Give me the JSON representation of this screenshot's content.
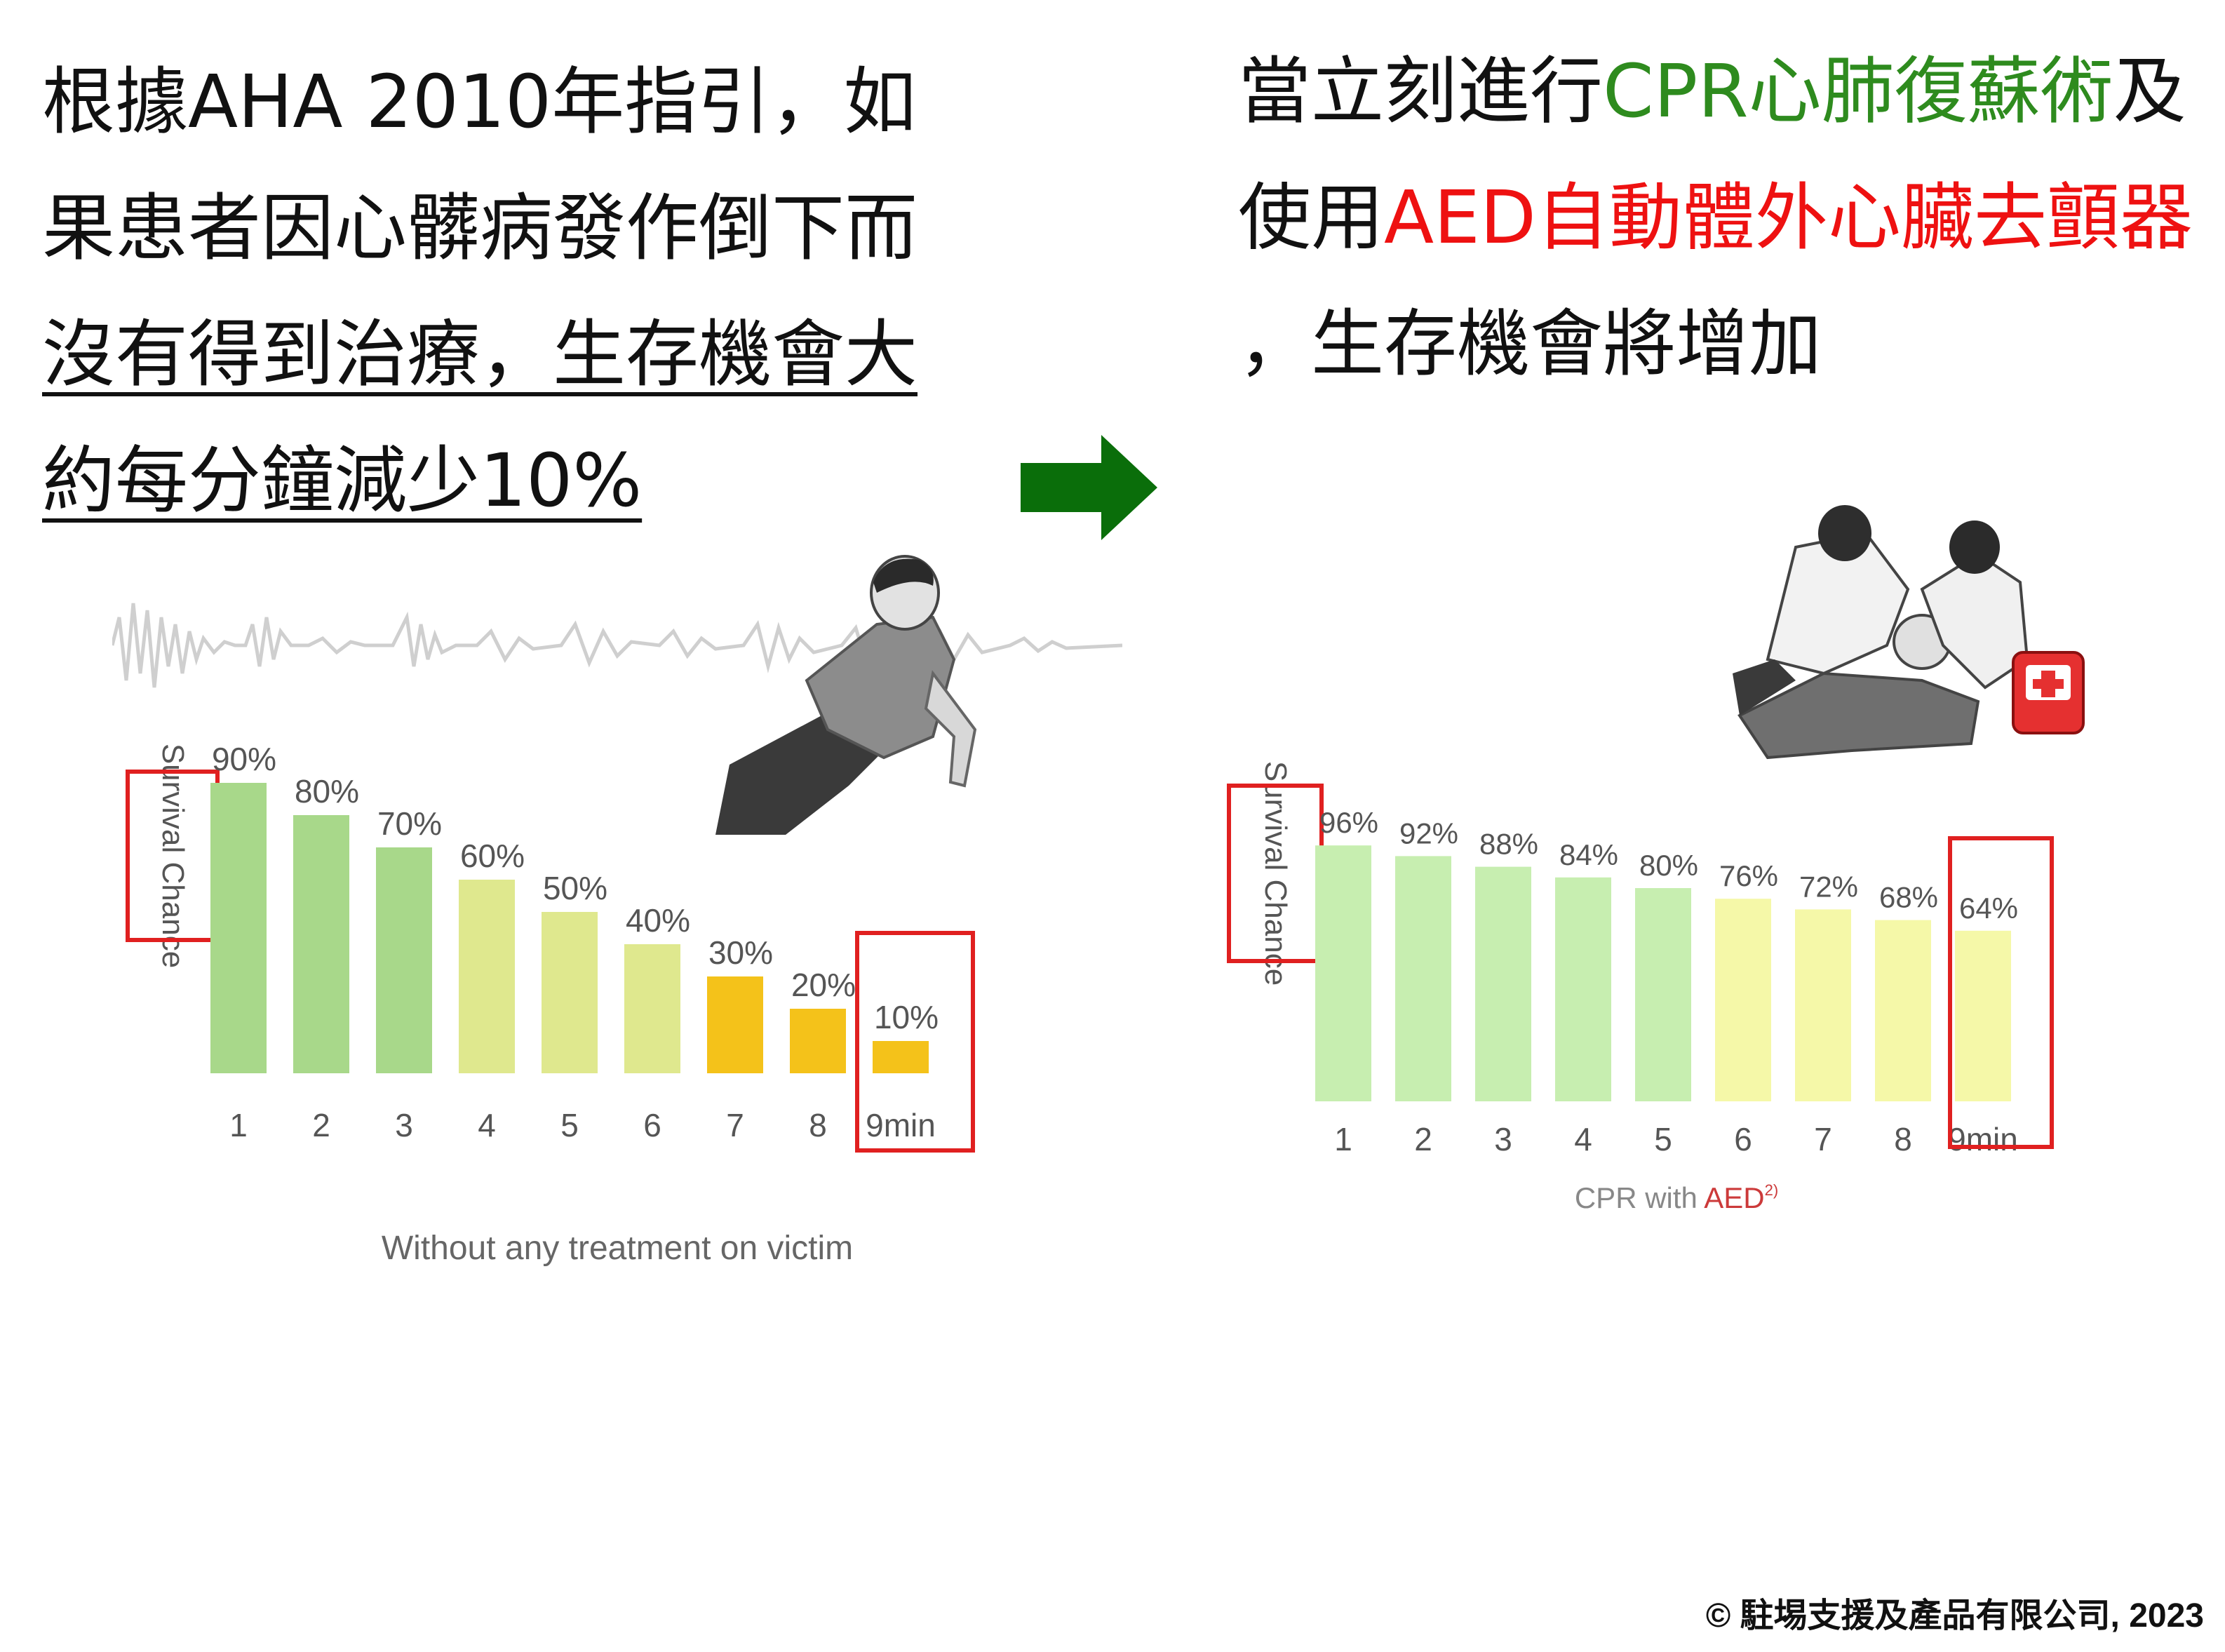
{
  "left_text": {
    "line1": "根據AHA  2010年指引，如",
    "line2": "果患者因心髒病發作倒下而",
    "line3": "沒有得到治療，生存機會大",
    "line4": "約每分鐘減少10%"
  },
  "right_text": {
    "l1_a": "當立刻進行",
    "l1_b": "CPR心肺復蘇術",
    "l1_c": "及",
    "l2_a": "使用",
    "l2_b": "AED自動體外心臟去顫器",
    "l3": "，生存機會將增加"
  },
  "colors": {
    "green_text": "#2e8b1e",
    "red_text": "#ee1111",
    "arrow": "#0a6e0a",
    "box": "#e02020"
  },
  "chart_data": [
    {
      "type": "bar",
      "ylabel": "Survival Chance",
      "xlabel": "Without any treatment on victim",
      "categories": [
        "1",
        "2",
        "3",
        "4",
        "5",
        "6",
        "7",
        "8",
        "9min"
      ],
      "values": [
        90,
        80,
        70,
        60,
        50,
        40,
        30,
        20,
        10
      ],
      "value_labels": [
        "90%",
        "80%",
        "70%",
        "60%",
        "50%",
        "40%",
        "30%",
        "20%",
        "10%"
      ],
      "ylim": [
        0,
        100
      ],
      "grid": false,
      "bar_colors": [
        "#a8d88a",
        "#a8d88a",
        "#a8d88a",
        "#dfe88e",
        "#dfe88e",
        "#dfe88e",
        "#f4c21a",
        "#f4c21a",
        "#f4c21a"
      ]
    },
    {
      "type": "bar",
      "ylabel": "Survival Chance",
      "xlabel_a": "CPR with ",
      "xlabel_b": "AED",
      "xlabel_sup": "2)",
      "categories": [
        "1",
        "2",
        "3",
        "4",
        "5",
        "6",
        "7",
        "8",
        "9min"
      ],
      "values": [
        96,
        92,
        88,
        84,
        80,
        76,
        72,
        68,
        64
      ],
      "value_labels": [
        "96%",
        "92%",
        "88%",
        "84%",
        "80%",
        "76%",
        "72%",
        "68%",
        "64%"
      ],
      "ylim": [
        0,
        100
      ],
      "grid": false,
      "bar_colors": [
        "#c7eeb0",
        "#c7eeb0",
        "#c7eeb0",
        "#c7eeb0",
        "#c7eeb0",
        "#f5f8a8",
        "#f5f8a8",
        "#f5f8a8",
        "#f5f8a8"
      ]
    }
  ],
  "footer": "© 駐埸支援及產品有限公司, 2023"
}
